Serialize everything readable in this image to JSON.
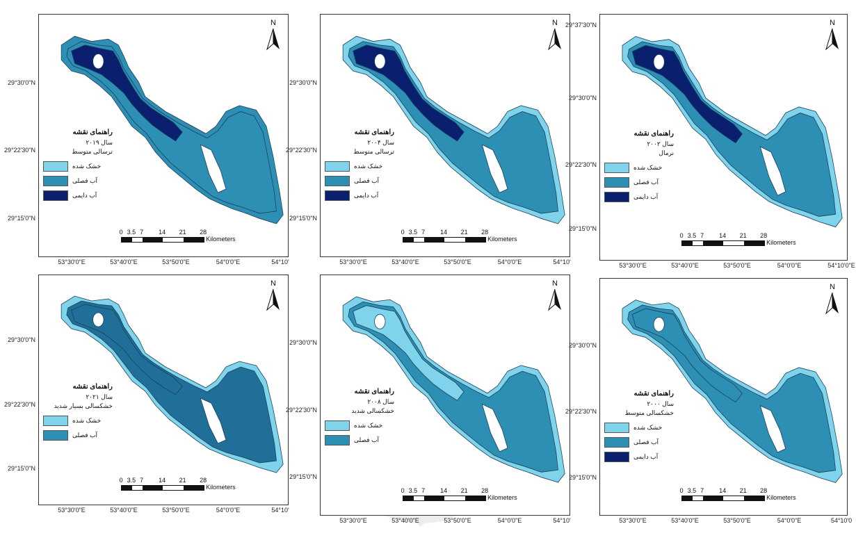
{
  "colors": {
    "dry": "#7fd3ea",
    "seasonal": "#2e8fb4",
    "permanent": "#0a1f6e",
    "deep_seasonal": "#1f6f98",
    "outline": "#1a3f5a"
  },
  "common": {
    "north": "N",
    "scale_ticks": [
      "0",
      "3.5",
      "7",
      "14",
      "21",
      "28"
    ],
    "scale_unit": "Kilometers",
    "legend_title": "راهنمای نقشه",
    "classes": {
      "dry": "خشک شده",
      "seasonal": "آب فصلی",
      "permanent": "آب دایمی"
    },
    "icons": [
      "north-arrow-icon",
      "watermark-emblem-icon"
    ]
  },
  "maps": [
    {
      "year": "سال ۲۰۱۹",
      "class": "ترسالی متوسط",
      "lat": [
        "29°30'0\"N",
        "29°22'30\"N",
        "29°15'0\"N"
      ],
      "lon": [
        "53°30'0\"E",
        "53°40'0\"E",
        "53°50'0\"E",
        "54°0'0\"E",
        "54°10'"
      ],
      "legend": [
        "dry",
        "seasonal",
        "permanent"
      ]
    },
    {
      "year": "سال ۲۰۰۴",
      "class": "ترسالی متوسط",
      "lat": [
        "29°30'0\"N",
        "29°22'30\"N",
        "29°15'0\"N"
      ],
      "lon": [
        "53°30'0\"E",
        "53°40'0\"E",
        "53°50'0\"E",
        "54°0'0\"E",
        "54°10'"
      ],
      "legend": [
        "dry",
        "seasonal",
        "permanent"
      ]
    },
    {
      "year": "سال ۲۰۰۲",
      "class": "نرمال",
      "lat": [
        "29°37'30\"N",
        "29°30'0\"N",
        "29°22'30\"N",
        "29°15'0\"N"
      ],
      "lon": [
        "53°30'0\"E",
        "53°40'0\"E",
        "53°50'0\"E",
        "54°0'0\"E",
        "54°10'0\"E"
      ],
      "legend": [
        "dry",
        "seasonal",
        "permanent"
      ]
    },
    {
      "year": "سال ۲۰۲۱",
      "class": "خشکسالی بسیار شدید",
      "lat": [
        "29°30'0\"N",
        "29°22'30\"N",
        "29°15'0\"N"
      ],
      "lon": [
        "53°30'0\"E",
        "53°40'0\"E",
        "53°50'0\"E",
        "54°0'0\"E",
        "54°10'"
      ],
      "legend": [
        "dry",
        "seasonal"
      ]
    },
    {
      "year": "سال ۲۰۰۸",
      "class": "خشکسالی شدید",
      "lat": [
        "29°30'0\"N",
        "29°22'30\"N",
        "29°15'0\"N"
      ],
      "lon": [
        "53°30'0\"E",
        "53°40'0\"E",
        "53°50'0\"E",
        "54°0'0\"E",
        "54°10'"
      ],
      "legend": [
        "dry",
        "seasonal"
      ]
    },
    {
      "year": "سال ۲۰۰۰",
      "class": "خشکسالی متوسط",
      "lat": [
        "29°30'0\"N",
        "29°22'30\"N",
        "29°15'0\"N"
      ],
      "lon": [
        "53°30'0\"E",
        "53°40'0\"E",
        "53°50'0\"E",
        "54°0'0\"E",
        "54°10'0"
      ],
      "legend": [
        "dry",
        "seasonal",
        "permanent"
      ]
    }
  ]
}
